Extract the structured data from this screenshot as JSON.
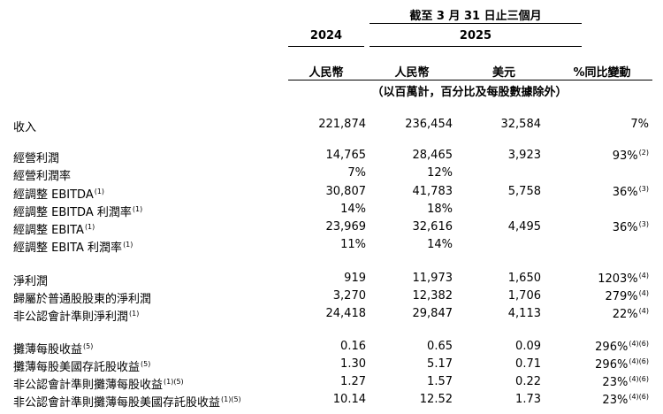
{
  "header": {
    "period": "截至 3 月 31 日止三個月",
    "years": [
      "2024",
      "2025"
    ],
    "currencies": [
      "人民幣",
      "人民幣",
      "美元",
      "%同比變動"
    ],
    "unit_note": "（以百萬計，百分比及每股數據除外）"
  },
  "rows": [
    {
      "label": "收入",
      "sup": "",
      "values": [
        "221,874",
        "236,454",
        "32,584",
        "7%"
      ],
      "last_sup": ""
    },
    {
      "label": "經營利潤",
      "sup": "",
      "values": [
        "14,765",
        "28,465",
        "3,923",
        "93%"
      ],
      "last_sup": "(2)"
    },
    {
      "label": "經營利潤率",
      "sup": "",
      "values": [
        "7%",
        "12%",
        "",
        ""
      ],
      "last_sup": ""
    },
    {
      "label": "經調整 EBITDA",
      "sup": "(1)",
      "values": [
        "30,807",
        "41,783",
        "5,758",
        "36%"
      ],
      "last_sup": "(3)"
    },
    {
      "label": "經調整 EBITDA 利潤率",
      "sup": "(1)",
      "values": [
        "14%",
        "18%",
        "",
        ""
      ],
      "last_sup": ""
    },
    {
      "label": "經調整 EBITA",
      "sup": "(1)",
      "values": [
        "23,969",
        "32,616",
        "4,495",
        "36%"
      ],
      "last_sup": "(3)"
    },
    {
      "label": "經調整 EBITA 利潤率",
      "sup": "(1)",
      "values": [
        "11%",
        "14%",
        "",
        ""
      ],
      "last_sup": ""
    },
    {
      "label": "淨利潤",
      "sup": "",
      "values": [
        "919",
        "11,973",
        "1,650",
        "1203%"
      ],
      "last_sup": "(4)"
    },
    {
      "label": "歸屬於普通股股東的淨利潤",
      "sup": "",
      "values": [
        "3,270",
        "12,382",
        "1,706",
        "279%"
      ],
      "last_sup": "(4)"
    },
    {
      "label": "非公認會計準則淨利潤",
      "sup": "(1)",
      "values": [
        "24,418",
        "29,847",
        "4,113",
        "22%"
      ],
      "last_sup": "(4)"
    },
    {
      "label": "攤薄每股收益",
      "sup": "(5)",
      "values": [
        "0.16",
        "0.65",
        "0.09",
        "296%"
      ],
      "last_sup": "(4)(6)"
    },
    {
      "label": "攤薄每股美國存託股收益",
      "sup": "(5)",
      "values": [
        "1.30",
        "5.17",
        "0.71",
        "296%"
      ],
      "last_sup": "(4)(6)"
    },
    {
      "label": "非公認會計準則攤薄每股收益",
      "sup": "(1)(5)",
      "values": [
        "1.27",
        "1.57",
        "0.22",
        "23%"
      ],
      "last_sup": "(4)(6)"
    },
    {
      "label": "非公認會計準則攤薄每股美國存託股收益",
      "sup": "(1)(5)",
      "values": [
        "10.14",
        "12.52",
        "1.73",
        "23%"
      ],
      "last_sup": "(4)(6)"
    }
  ]
}
